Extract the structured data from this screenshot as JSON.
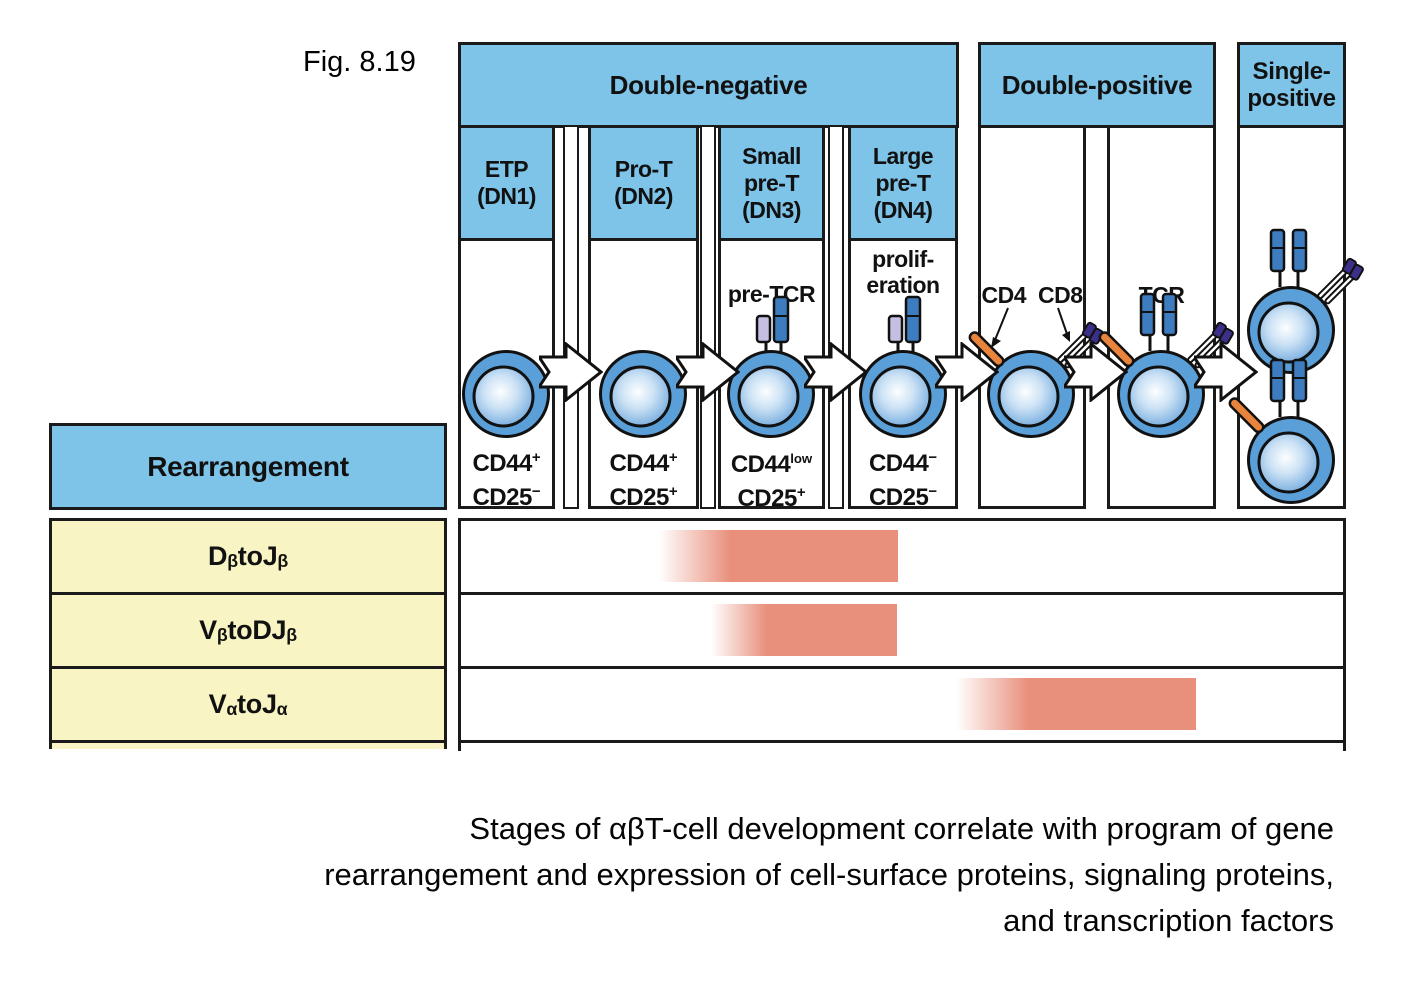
{
  "figure_label": "Fig. 8.19",
  "groups": {
    "double_negative": "Double-negative",
    "double_positive": "Double-positive",
    "single_positive": "Single-positive"
  },
  "stages": [
    {
      "line1": "ETP",
      "line2": "(DN1)",
      "marker1": {
        "base": "CD44",
        "sup": "+"
      },
      "marker2": {
        "base": "CD25",
        "sup": "−"
      }
    },
    {
      "line1": "Pro-T",
      "line2": "(DN2)",
      "marker1": {
        "base": "CD44",
        "sup": "+"
      },
      "marker2": {
        "base": "CD25",
        "sup": "+"
      }
    },
    {
      "line1": "Small",
      "line2": "pre-T",
      "line3": "(DN3)",
      "annotation": "pre-TCR",
      "marker1": {
        "base": "CD44",
        "sup": "low"
      },
      "marker2": {
        "base": "CD25",
        "sup": "+"
      }
    },
    {
      "line1": "Large",
      "line2": "pre-T",
      "line3": "(DN4)",
      "annotation_line1": "prolif-",
      "annotation_line2": "eration",
      "marker1": {
        "base": "CD44",
        "sup": "−"
      },
      "marker2": {
        "base": "CD25",
        "sup": "−"
      }
    },
    {
      "annotation_cd4": "CD4",
      "annotation_cd8": "CD8"
    },
    {
      "annotation": "TCR"
    },
    {}
  ],
  "rearrangement": {
    "header": "Rearrangement",
    "rows": [
      {
        "g1": "D",
        "s1": "β",
        "mid": " to ",
        "g2": "J",
        "s2": "β",
        "bar": {
          "start": 0.224,
          "end": 0.495
        }
      },
      {
        "g1": "V",
        "s1": "β",
        "mid": " to ",
        "g2": "DJ",
        "s2": "β",
        "bar": {
          "start": 0.283,
          "end": 0.494
        }
      },
      {
        "g1": "V",
        "s1": "α",
        "mid": " to ",
        "g2": "J",
        "s2": "α",
        "bar": {
          "start": 0.561,
          "end": 0.833
        }
      }
    ]
  },
  "caption": {
    "line1": "Stages of αβT-cell development correlate with program of gene",
    "line2": "rearrangement and expression of cell-surface proteins, signaling proteins,",
    "line3": "and transcription factors"
  },
  "colors": {
    "header_blue": "#7EC3E8",
    "row_yellow": "#F8F4C3",
    "bar_salmon": "#E8907C",
    "cell_blue": "#5B9FD8",
    "receptor_blue": "#3E7CC0",
    "cd4_orange": "#E8843C",
    "cd8_purple": "#3A3089",
    "pre_tcr_lavender": "#C6BFE2",
    "outline": "#111111"
  },
  "icons": {
    "t_cell": "blue double-circle with radial-gradient nucleus",
    "pre_tcr_receptor": "short lavender bar beside tall blue segmented bar",
    "tcr_receptor": "two vertical blue segmented bars",
    "cd4_coreceptor": "orange stick upper-left",
    "cd8_coreceptor": "two thin sticks with purple tips upper-right",
    "stage_arrow": "white block arrow with notched tail pointing right"
  }
}
